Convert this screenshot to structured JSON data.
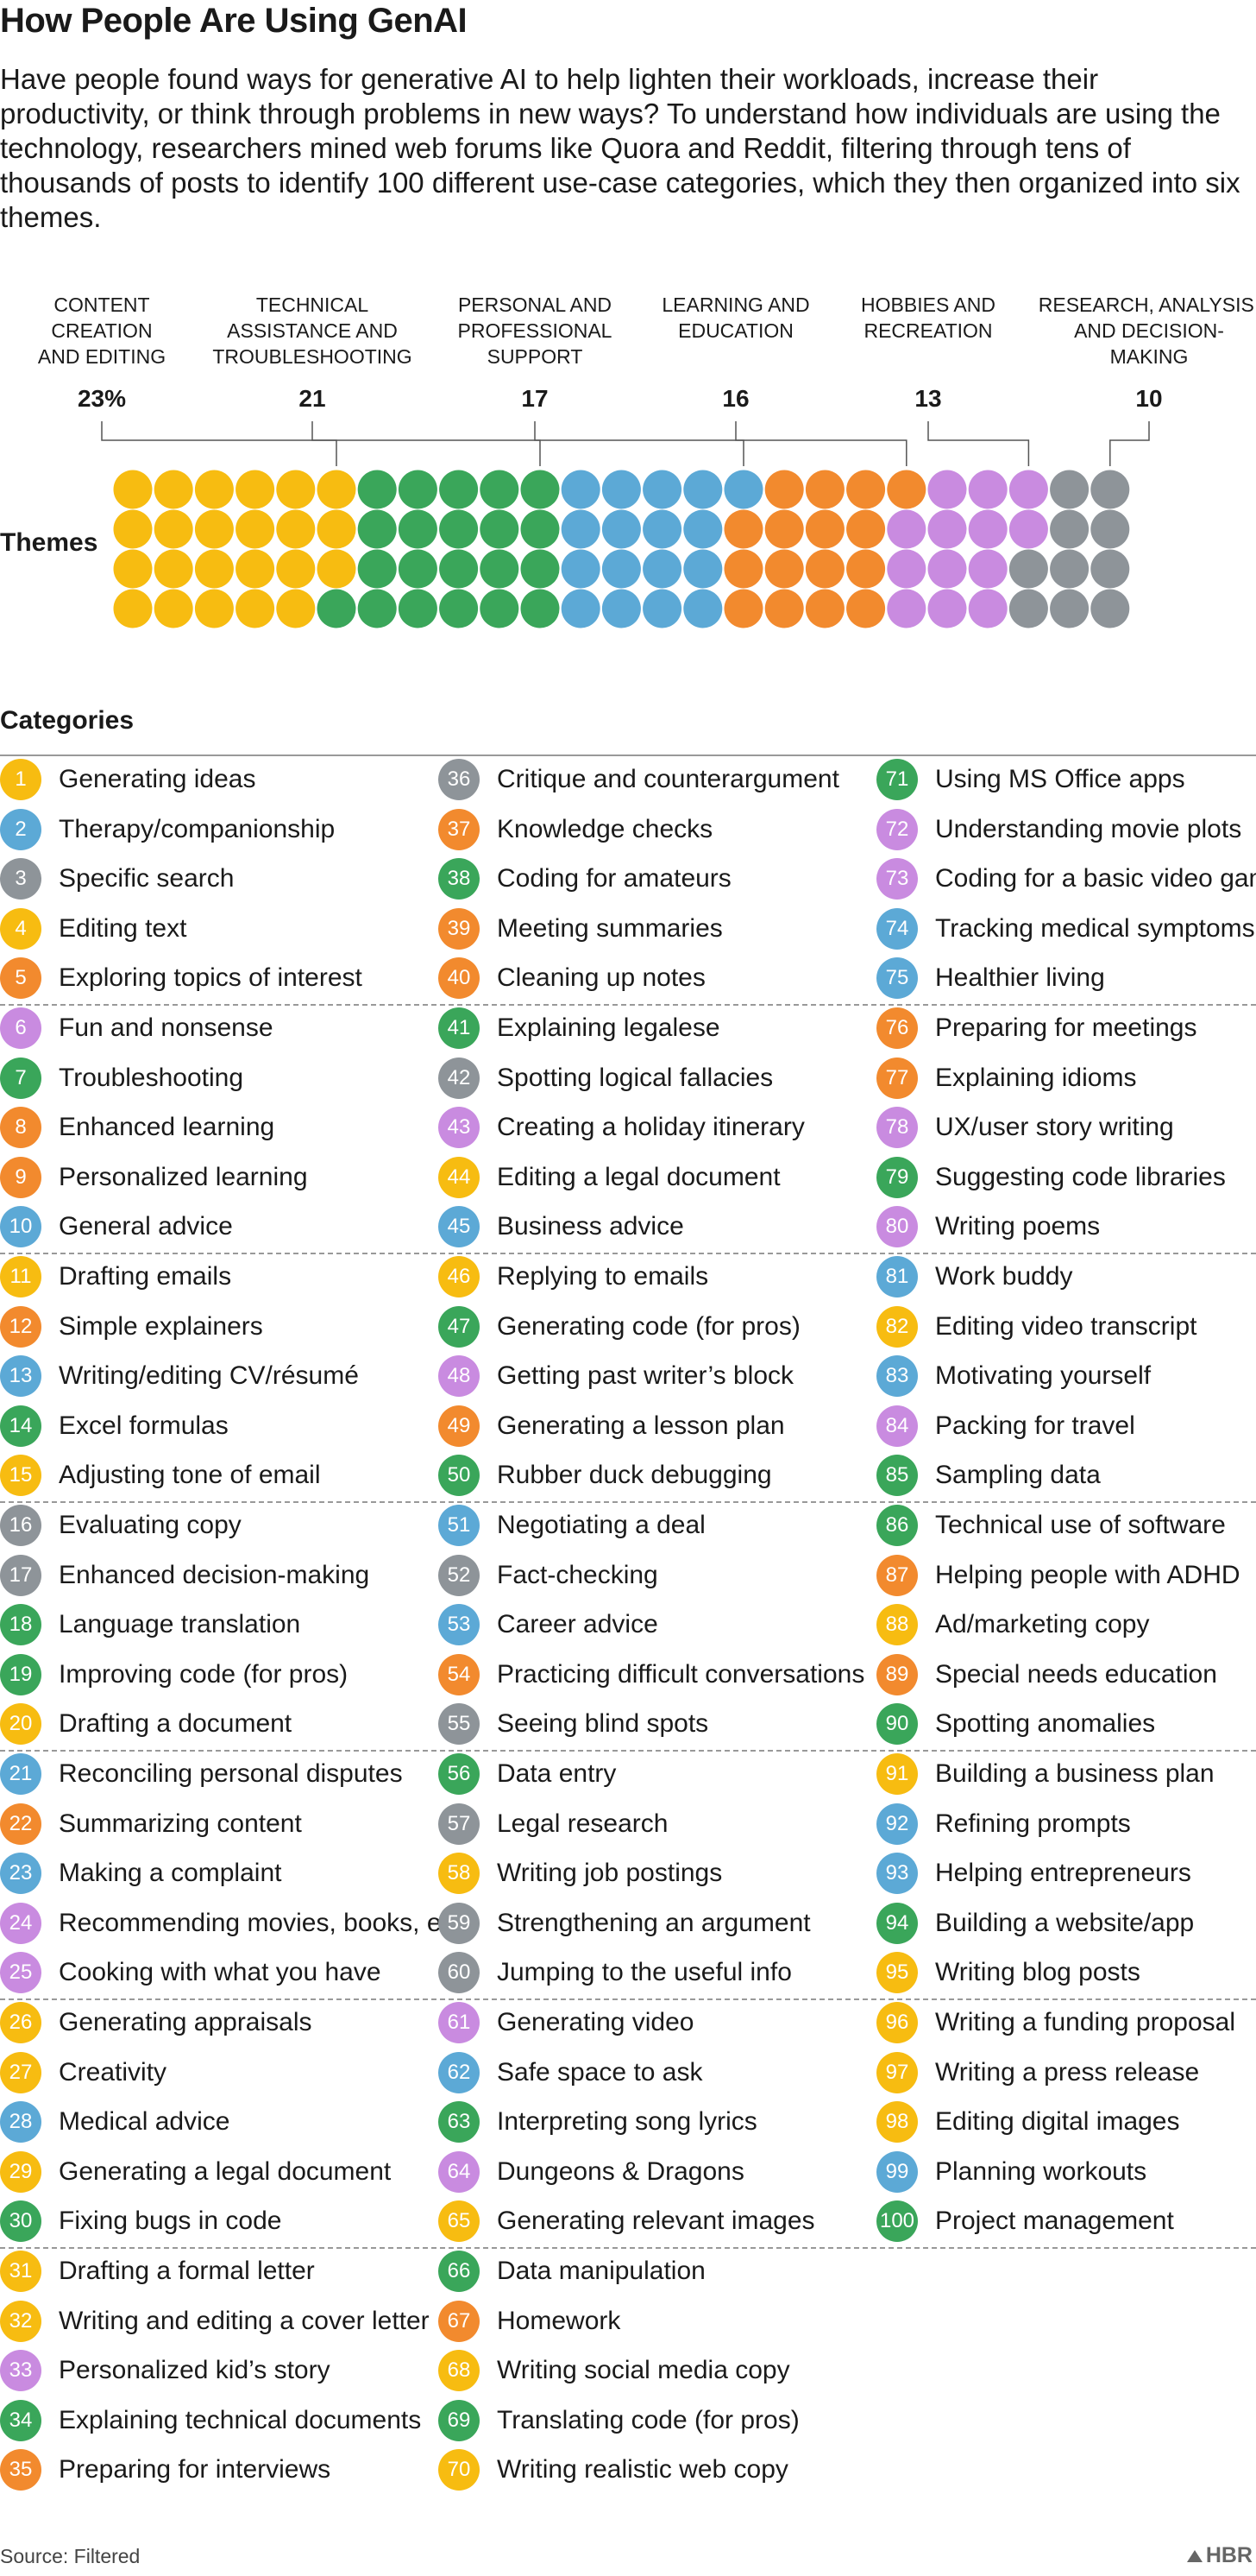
{
  "title": "How People Are Using GenAI",
  "intro": "Have people found ways for generative AI to help lighten their workloads, increase their productivity, or think through problems in new ways? To understand how individuals are using the technology, researchers mined web forums like Quora and Reddit, filtering through tens of thousands of posts to identify 100 different use-case categories, which they then organized into six themes.",
  "themes_label": "Themes",
  "categories_title": "Categories",
  "source": "Source: Filtered",
  "logo": "HBR",
  "colors": {
    "content": "#F7BC11",
    "technical": "#3AA65A",
    "personal": "#5CA9D6",
    "learning": "#F28A2E",
    "hobbies": "#C98BE0",
    "research": "#8E9499"
  },
  "chart_data": {
    "type": "waffle",
    "title": "Themes",
    "unit": "percent",
    "rows": 4,
    "columns": 25,
    "fill_order": "column-major",
    "series": [
      {
        "key": "content",
        "name": "CONTENT CREATION AND EDITING",
        "label_lines": [
          "CONTENT",
          "CREATION",
          "AND EDITING"
        ],
        "value": 23,
        "display": "23%"
      },
      {
        "key": "technical",
        "name": "TECHNICAL ASSISTANCE AND TROUBLESHOOTING",
        "label_lines": [
          "TECHNICAL",
          "ASSISTANCE AND",
          "TROUBLESHOOTING"
        ],
        "value": 21,
        "display": "21"
      },
      {
        "key": "personal",
        "name": "PERSONAL AND PROFESSIONAL SUPPORT",
        "label_lines": [
          "PERSONAL AND",
          "PROFESSIONAL",
          "SUPPORT"
        ],
        "value": 17,
        "display": "17"
      },
      {
        "key": "learning",
        "name": "LEARNING AND EDUCATION",
        "label_lines": [
          "LEARNING AND",
          "EDUCATION"
        ],
        "value": 16,
        "display": "16"
      },
      {
        "key": "hobbies",
        "name": "HOBBIES AND RECREATION",
        "label_lines": [
          "HOBBIES AND",
          "RECREATION"
        ],
        "value": 13,
        "display": "13"
      },
      {
        "key": "research",
        "name": "RESEARCH, ANALYSIS, AND DECISION-MAKING",
        "label_lines": [
          "RESEARCH, ANALYSIS,",
          "AND DECISION-",
          "MAKING"
        ],
        "value": 10,
        "display": "10"
      }
    ]
  },
  "categories": [
    {
      "n": 1,
      "label": "Generating ideas",
      "theme": "content"
    },
    {
      "n": 2,
      "label": "Therapy/companionship",
      "theme": "personal"
    },
    {
      "n": 3,
      "label": "Specific search",
      "theme": "research"
    },
    {
      "n": 4,
      "label": "Editing text",
      "theme": "content"
    },
    {
      "n": 5,
      "label": "Exploring topics of interest",
      "theme": "learning"
    },
    {
      "n": 6,
      "label": "Fun and nonsense",
      "theme": "hobbies"
    },
    {
      "n": 7,
      "label": "Troubleshooting",
      "theme": "technical"
    },
    {
      "n": 8,
      "label": "Enhanced learning",
      "theme": "learning"
    },
    {
      "n": 9,
      "label": "Personalized learning",
      "theme": "learning"
    },
    {
      "n": 10,
      "label": "General advice",
      "theme": "personal"
    },
    {
      "n": 11,
      "label": "Drafting emails",
      "theme": "content"
    },
    {
      "n": 12,
      "label": "Simple explainers",
      "theme": "learning"
    },
    {
      "n": 13,
      "label": "Writing/editing CV/résumé",
      "theme": "personal"
    },
    {
      "n": 14,
      "label": "Excel formulas",
      "theme": "technical"
    },
    {
      "n": 15,
      "label": "Adjusting tone of email",
      "theme": "content"
    },
    {
      "n": 16,
      "label": "Evaluating copy",
      "theme": "research"
    },
    {
      "n": 17,
      "label": "Enhanced decision-making",
      "theme": "research"
    },
    {
      "n": 18,
      "label": "Language translation",
      "theme": "technical"
    },
    {
      "n": 19,
      "label": "Improving code (for pros)",
      "theme": "technical"
    },
    {
      "n": 20,
      "label": "Drafting a document",
      "theme": "content"
    },
    {
      "n": 21,
      "label": "Reconciling personal disputes",
      "theme": "personal"
    },
    {
      "n": 22,
      "label": "Summarizing content",
      "theme": "learning"
    },
    {
      "n": 23,
      "label": "Making a complaint",
      "theme": "personal"
    },
    {
      "n": 24,
      "label": "Recommending movies, books, etc.",
      "theme": "hobbies"
    },
    {
      "n": 25,
      "label": "Cooking with what you have",
      "theme": "hobbies"
    },
    {
      "n": 26,
      "label": "Generating appraisals",
      "theme": "content"
    },
    {
      "n": 27,
      "label": "Creativity",
      "theme": "content"
    },
    {
      "n": 28,
      "label": "Medical advice",
      "theme": "personal"
    },
    {
      "n": 29,
      "label": "Generating a legal document",
      "theme": "content"
    },
    {
      "n": 30,
      "label": "Fixing bugs in code",
      "theme": "technical"
    },
    {
      "n": 31,
      "label": "Drafting a formal letter",
      "theme": "content"
    },
    {
      "n": 32,
      "label": "Writing and editing a cover letter",
      "theme": "content"
    },
    {
      "n": 33,
      "label": "Personalized kid’s story",
      "theme": "hobbies"
    },
    {
      "n": 34,
      "label": "Explaining technical documents",
      "theme": "technical"
    },
    {
      "n": 35,
      "label": "Preparing for interviews",
      "theme": "learning"
    },
    {
      "n": 36,
      "label": "Critique and counterargument",
      "theme": "research"
    },
    {
      "n": 37,
      "label": "Knowledge checks",
      "theme": "learning"
    },
    {
      "n": 38,
      "label": "Coding for amateurs",
      "theme": "technical"
    },
    {
      "n": 39,
      "label": "Meeting summaries",
      "theme": "learning"
    },
    {
      "n": 40,
      "label": "Cleaning up notes",
      "theme": "learning"
    },
    {
      "n": 41,
      "label": "Explaining legalese",
      "theme": "technical"
    },
    {
      "n": 42,
      "label": "Spotting logical fallacies",
      "theme": "research"
    },
    {
      "n": 43,
      "label": "Creating a holiday itinerary",
      "theme": "hobbies"
    },
    {
      "n": 44,
      "label": "Editing a legal document",
      "theme": "content"
    },
    {
      "n": 45,
      "label": "Business advice",
      "theme": "personal"
    },
    {
      "n": 46,
      "label": "Replying to emails",
      "theme": "content"
    },
    {
      "n": 47,
      "label": "Generating code (for pros)",
      "theme": "technical"
    },
    {
      "n": 48,
      "label": "Getting past writer’s block",
      "theme": "hobbies"
    },
    {
      "n": 49,
      "label": "Generating a lesson plan",
      "theme": "learning"
    },
    {
      "n": 50,
      "label": "Rubber duck debugging",
      "theme": "technical"
    },
    {
      "n": 51,
      "label": "Negotiating a deal",
      "theme": "personal"
    },
    {
      "n": 52,
      "label": "Fact-checking",
      "theme": "research"
    },
    {
      "n": 53,
      "label": "Career advice",
      "theme": "personal"
    },
    {
      "n": 54,
      "label": "Practicing difficult conversations",
      "theme": "learning"
    },
    {
      "n": 55,
      "label": "Seeing blind spots",
      "theme": "research"
    },
    {
      "n": 56,
      "label": "Data entry",
      "theme": "technical"
    },
    {
      "n": 57,
      "label": "Legal research",
      "theme": "research"
    },
    {
      "n": 58,
      "label": "Writing job postings",
      "theme": "content"
    },
    {
      "n": 59,
      "label": "Strengthening an argument",
      "theme": "research"
    },
    {
      "n": 60,
      "label": "Jumping to the useful info",
      "theme": "research"
    },
    {
      "n": 61,
      "label": "Generating video",
      "theme": "hobbies"
    },
    {
      "n": 62,
      "label": "Safe space to ask",
      "theme": "personal"
    },
    {
      "n": 63,
      "label": "Interpreting song lyrics",
      "theme": "technical"
    },
    {
      "n": 64,
      "label": "Dungeons & Dragons",
      "theme": "hobbies"
    },
    {
      "n": 65,
      "label": "Generating relevant images",
      "theme": "content"
    },
    {
      "n": 66,
      "label": "Data manipulation",
      "theme": "technical"
    },
    {
      "n": 67,
      "label": "Homework",
      "theme": "learning"
    },
    {
      "n": 68,
      "label": "Writing social media copy",
      "theme": "content"
    },
    {
      "n": 69,
      "label": "Translating code (for pros)",
      "theme": "technical"
    },
    {
      "n": 70,
      "label": "Writing realistic web copy",
      "theme": "content"
    },
    {
      "n": 71,
      "label": "Using MS Office apps",
      "theme": "technical"
    },
    {
      "n": 72,
      "label": "Understanding movie plots",
      "theme": "hobbies"
    },
    {
      "n": 73,
      "label": "Coding for a basic video game",
      "theme": "hobbies"
    },
    {
      "n": 74,
      "label": "Tracking medical symptoms",
      "theme": "personal"
    },
    {
      "n": 75,
      "label": "Healthier living",
      "theme": "personal"
    },
    {
      "n": 76,
      "label": "Preparing for meetings",
      "theme": "learning"
    },
    {
      "n": 77,
      "label": "Explaining idioms",
      "theme": "learning"
    },
    {
      "n": 78,
      "label": "UX/user story writing",
      "theme": "hobbies"
    },
    {
      "n": 79,
      "label": "Suggesting code libraries",
      "theme": "technical"
    },
    {
      "n": 80,
      "label": "Writing poems",
      "theme": "hobbies"
    },
    {
      "n": 81,
      "label": "Work buddy",
      "theme": "personal"
    },
    {
      "n": 82,
      "label": "Editing video transcript",
      "theme": "content"
    },
    {
      "n": 83,
      "label": "Motivating yourself",
      "theme": "personal"
    },
    {
      "n": 84,
      "label": "Packing for travel",
      "theme": "hobbies"
    },
    {
      "n": 85,
      "label": "Sampling data",
      "theme": "technical"
    },
    {
      "n": 86,
      "label": "Technical use of software",
      "theme": "technical"
    },
    {
      "n": 87,
      "label": "Helping people with ADHD",
      "theme": "learning"
    },
    {
      "n": 88,
      "label": "Ad/marketing copy",
      "theme": "content"
    },
    {
      "n": 89,
      "label": "Special needs education",
      "theme": "learning"
    },
    {
      "n": 90,
      "label": "Spotting anomalies",
      "theme": "technical"
    },
    {
      "n": 91,
      "label": "Building a business plan",
      "theme": "content"
    },
    {
      "n": 92,
      "label": "Refining prompts",
      "theme": "personal"
    },
    {
      "n": 93,
      "label": "Helping entrepreneurs",
      "theme": "personal"
    },
    {
      "n": 94,
      "label": "Building a website/app",
      "theme": "technical"
    },
    {
      "n": 95,
      "label": "Writing blog posts",
      "theme": "content"
    },
    {
      "n": 96,
      "label": "Writing a funding proposal",
      "theme": "content"
    },
    {
      "n": 97,
      "label": "Writing a press release",
      "theme": "content"
    },
    {
      "n": 98,
      "label": "Editing digital images",
      "theme": "content"
    },
    {
      "n": 99,
      "label": "Planning workouts",
      "theme": "personal"
    },
    {
      "n": 100,
      "label": "Project management",
      "theme": "technical"
    }
  ]
}
